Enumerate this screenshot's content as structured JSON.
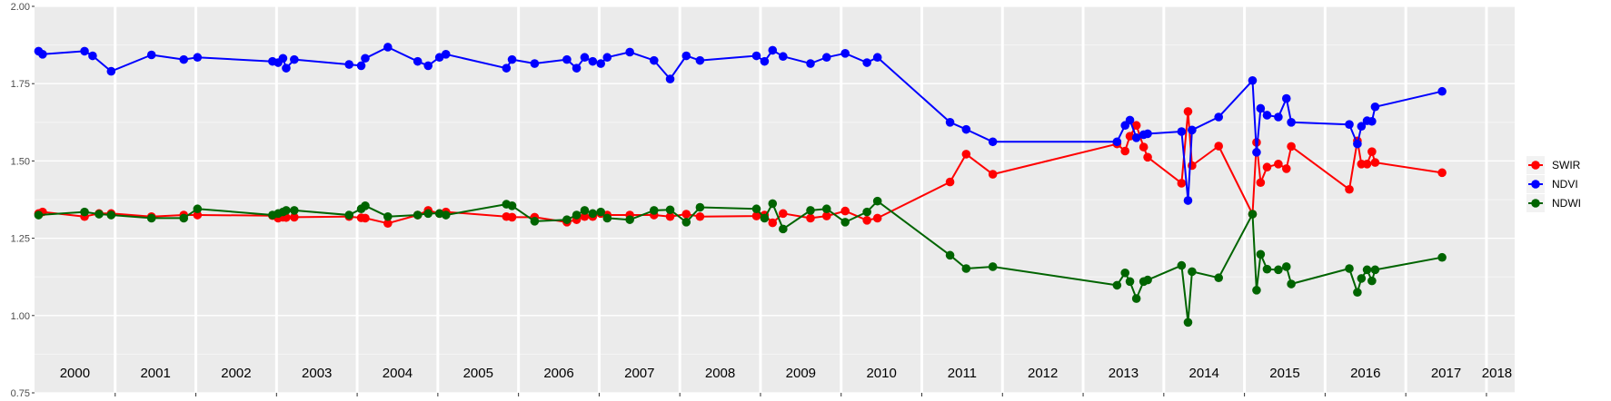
{
  "chart_data": {
    "type": "line",
    "title": "",
    "xlabel": "",
    "ylabel": "",
    "ylim": [
      0.75,
      2.0
    ],
    "yticks": [
      "0.75",
      "1.00",
      "1.25",
      "1.50",
      "1.75",
      "2.00"
    ],
    "ytick_values": [
      0.75,
      1.0,
      1.25,
      1.5,
      1.75,
      2.0
    ],
    "xlim": [
      2000.0,
      2018.35
    ],
    "year_labels": [
      "2000",
      "2001",
      "2002",
      "2003",
      "2004",
      "2005",
      "2006",
      "2007",
      "2008",
      "2009",
      "2010",
      "2011",
      "2012",
      "2013",
      "2014",
      "2015",
      "2016",
      "2017",
      "2018"
    ],
    "year_starts": [
      2000,
      2001,
      2002,
      2003,
      2004,
      2005,
      2006,
      2007,
      2008,
      2009,
      2010,
      2011,
      2012,
      2013,
      2014,
      2015,
      2016,
      2017,
      2018
    ],
    "grid": true,
    "legend_position": "right",
    "series": [
      {
        "name": "SWIR",
        "color": "#ff0000",
        "x": [
          2000.05,
          2000.1,
          2000.62,
          2000.8,
          2000.95,
          2001.45,
          2001.85,
          2002.02,
          2002.95,
          2003.02,
          2003.08,
          2003.12,
          2003.22,
          2003.9,
          2004.05,
          2004.1,
          2004.38,
          2004.75,
          2004.88,
          2005.02,
          2005.1,
          2005.85,
          2005.92,
          2006.2,
          2006.6,
          2006.72,
          2006.82,
          2006.92,
          2007.02,
          2007.1,
          2007.38,
          2007.68,
          2007.88,
          2008.08,
          2008.25,
          2008.95,
          2009.05,
          2009.15,
          2009.28,
          2009.62,
          2009.82,
          2010.05,
          2010.32,
          2010.45,
          2011.35,
          2011.55,
          2011.88,
          2013.42,
          2013.52,
          2013.58,
          2013.66,
          2013.75,
          2013.8,
          2014.22,
          2014.3,
          2014.35,
          2014.68,
          2015.1,
          2015.15,
          2015.2,
          2015.28,
          2015.42,
          2015.52,
          2015.58,
          2016.3,
          2016.4,
          2016.45,
          2016.52,
          2016.58,
          2016.62,
          2017.45
        ],
        "y": [
          1.33,
          1.335,
          1.32,
          1.33,
          1.33,
          1.32,
          1.325,
          1.325,
          1.323,
          1.315,
          1.318,
          1.317,
          1.318,
          1.32,
          1.316,
          1.315,
          1.298,
          1.325,
          1.34,
          1.33,
          1.335,
          1.32,
          1.318,
          1.318,
          1.302,
          1.31,
          1.32,
          1.32,
          1.33,
          1.325,
          1.325,
          1.325,
          1.32,
          1.328,
          1.32,
          1.322,
          1.325,
          1.3,
          1.33,
          1.315,
          1.322,
          1.338,
          1.308,
          1.315,
          1.432,
          1.522,
          1.457,
          1.555,
          1.532,
          1.58,
          1.615,
          1.545,
          1.512,
          1.428,
          1.66,
          1.485,
          1.548,
          1.328,
          1.56,
          1.43,
          1.48,
          1.49,
          1.475,
          1.547,
          1.408,
          1.565,
          1.49,
          1.49,
          1.53,
          1.495,
          1.462
        ]
      },
      {
        "name": "NDVI",
        "color": "#0000ff",
        "x": [
          2000.05,
          2000.1,
          2000.62,
          2000.72,
          2000.95,
          2001.45,
          2001.85,
          2002.02,
          2002.95,
          2003.02,
          2003.08,
          2003.12,
          2003.22,
          2003.9,
          2004.05,
          2004.1,
          2004.38,
          2004.75,
          2004.88,
          2005.02,
          2005.1,
          2005.85,
          2005.92,
          2006.2,
          2006.6,
          2006.72,
          2006.82,
          2006.92,
          2007.02,
          2007.1,
          2007.38,
          2007.68,
          2007.88,
          2008.08,
          2008.25,
          2008.95,
          2009.05,
          2009.15,
          2009.28,
          2009.62,
          2009.82,
          2010.05,
          2010.32,
          2010.45,
          2011.35,
          2011.55,
          2011.88,
          2013.42,
          2013.52,
          2013.58,
          2013.66,
          2013.75,
          2013.8,
          2014.22,
          2014.3,
          2014.35,
          2014.68,
          2015.1,
          2015.15,
          2015.2,
          2015.28,
          2015.42,
          2015.52,
          2015.58,
          2016.3,
          2016.4,
          2016.45,
          2016.52,
          2016.58,
          2016.62,
          2017.45
        ],
        "y": [
          1.855,
          1.845,
          1.855,
          1.84,
          1.79,
          1.843,
          1.828,
          1.835,
          1.822,
          1.818,
          1.832,
          1.8,
          1.828,
          1.812,
          1.808,
          1.832,
          1.868,
          1.822,
          1.808,
          1.835,
          1.845,
          1.8,
          1.828,
          1.815,
          1.828,
          1.8,
          1.835,
          1.822,
          1.815,
          1.835,
          1.852,
          1.825,
          1.765,
          1.84,
          1.825,
          1.84,
          1.822,
          1.858,
          1.838,
          1.815,
          1.835,
          1.848,
          1.818,
          1.835,
          1.625,
          1.602,
          1.562,
          1.562,
          1.615,
          1.632,
          1.575,
          1.585,
          1.588,
          1.595,
          1.372,
          1.6,
          1.642,
          1.76,
          1.528,
          1.67,
          1.648,
          1.642,
          1.702,
          1.625,
          1.618,
          1.555,
          1.612,
          1.63,
          1.628,
          1.675,
          1.725
        ]
      },
      {
        "name": "NDWI",
        "color": "#006400",
        "x": [
          2000.05,
          2000.62,
          2000.8,
          2000.95,
          2001.45,
          2001.85,
          2002.02,
          2002.95,
          2003.02,
          2003.08,
          2003.12,
          2003.22,
          2003.9,
          2004.05,
          2004.1,
          2004.38,
          2004.75,
          2004.88,
          2005.02,
          2005.1,
          2005.85,
          2005.92,
          2006.2,
          2006.6,
          2006.72,
          2006.82,
          2006.92,
          2007.02,
          2007.1,
          2007.38,
          2007.68,
          2007.88,
          2008.08,
          2008.25,
          2008.95,
          2009.05,
          2009.15,
          2009.28,
          2009.62,
          2009.82,
          2010.05,
          2010.32,
          2010.45,
          2011.35,
          2011.55,
          2011.88,
          2013.42,
          2013.52,
          2013.58,
          2013.66,
          2013.75,
          2013.8,
          2014.22,
          2014.3,
          2014.35,
          2014.68,
          2015.1,
          2015.15,
          2015.2,
          2015.28,
          2015.42,
          2015.52,
          2015.58,
          2016.3,
          2016.4,
          2016.45,
          2016.52,
          2016.58,
          2016.62,
          2017.45
        ],
        "y": [
          1.325,
          1.335,
          1.328,
          1.325,
          1.315,
          1.315,
          1.345,
          1.325,
          1.33,
          1.335,
          1.34,
          1.34,
          1.325,
          1.345,
          1.355,
          1.32,
          1.325,
          1.33,
          1.33,
          1.325,
          1.36,
          1.355,
          1.305,
          1.31,
          1.325,
          1.34,
          1.33,
          1.335,
          1.315,
          1.31,
          1.34,
          1.342,
          1.302,
          1.35,
          1.345,
          1.315,
          1.362,
          1.28,
          1.34,
          1.345,
          1.302,
          1.335,
          1.37,
          1.195,
          1.152,
          1.158,
          1.098,
          1.138,
          1.11,
          1.055,
          1.11,
          1.115,
          1.162,
          0.978,
          1.142,
          1.122,
          1.328,
          1.082,
          1.198,
          1.15,
          1.148,
          1.158,
          1.102,
          1.152,
          1.075,
          1.12,
          1.148,
          1.112,
          1.148,
          1.188
        ]
      }
    ]
  }
}
